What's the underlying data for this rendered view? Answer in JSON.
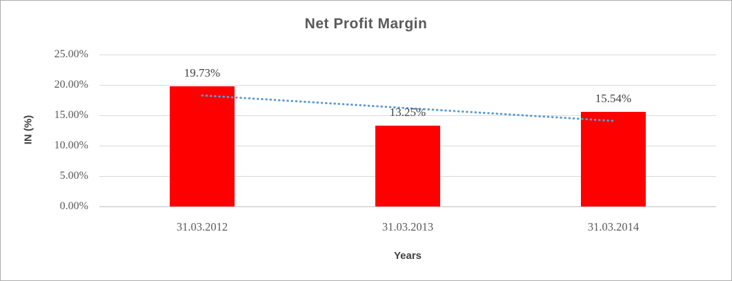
{
  "window": {
    "background": "#ffffff",
    "border_color": "#ababab"
  },
  "chart_data": {
    "type": "bar",
    "title": "Net Profit Margin",
    "xlabel": "Years",
    "ylabel": "IN (%)",
    "categories": [
      "31.03.2012",
      "31.03.2013",
      "31.03.2014"
    ],
    "series": [
      {
        "name": "Net Profit Margin",
        "color": "#ff0000",
        "values": [
          19.73,
          13.25,
          15.54
        ],
        "data_labels": [
          "19.73%",
          "13.25%",
          "15.54%"
        ]
      }
    ],
    "ylim": [
      0,
      25
    ],
    "yticks": [
      {
        "value": 0,
        "label": "0.00%"
      },
      {
        "value": 5,
        "label": "5.00%"
      },
      {
        "value": 10,
        "label": "10.00%"
      },
      {
        "value": 15,
        "label": "15.00%"
      },
      {
        "value": 20,
        "label": "20.00%"
      },
      {
        "value": 25,
        "label": "25.00%"
      }
    ],
    "grid": true,
    "legend": "none",
    "trendline": {
      "style": "dotted",
      "color": "#5b9bd5",
      "start_value": 18.27,
      "end_value": 14.08
    },
    "colors": {
      "bar": "#ff0000",
      "gridline": "#d9d9d9",
      "axis_line": "#bfbfbf",
      "title_text": "#595959",
      "tick_text": "#595959",
      "label_text": "#404040"
    }
  }
}
